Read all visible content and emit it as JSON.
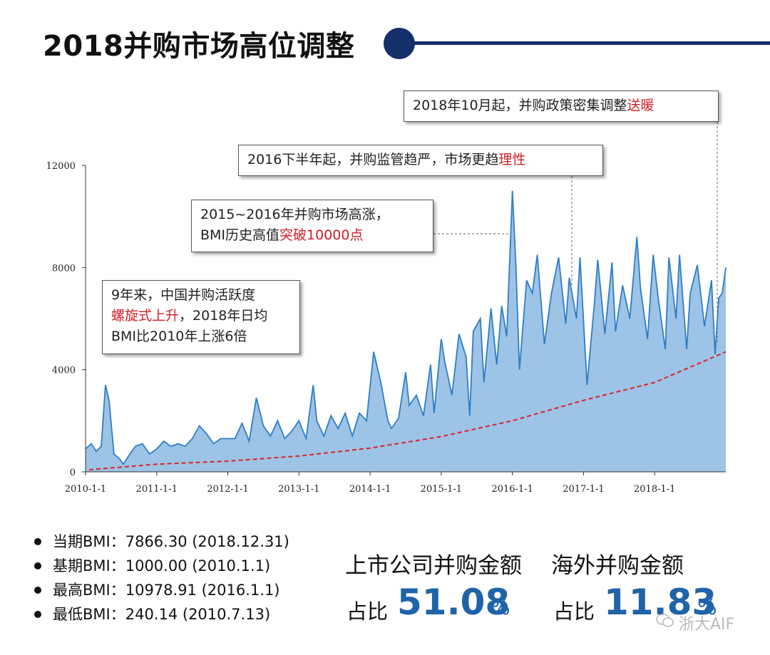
{
  "page": {
    "title": "2018并购市场高位调整",
    "watermark": "浙大AIF"
  },
  "callouts": {
    "policy_2018": {
      "text": "2018年10月起，并购政策密集调整",
      "highlight": "送暖"
    },
    "regulation_2016": {
      "text": "2016下半年起，并购监管趋严，市场更趋",
      "highlight": "理性"
    },
    "boom_2015": {
      "line1": "2015~2016年并购市场高涨，",
      "line2_pre": "BMI历史高值",
      "line2_highlight": "突破10000点"
    },
    "nine_years": {
      "line1": "9年来，中国并购活跃度",
      "line2_highlight": "螺旋式上升",
      "line2_post": "，2018年日均",
      "line3": "BMI比2010年上涨6倍"
    }
  },
  "stats": [
    {
      "label": "当期BMI：",
      "value": "7866.30 (2018.12.31)"
    },
    {
      "label": "基期BMI：",
      "value": "1000.00 (2010.1.1)"
    },
    {
      "label": "最高BMI：",
      "value": "10978.91 (2016.1.1)"
    },
    {
      "label": "最低BMI：",
      "value": "240.14 (2010.7.13)"
    }
  ],
  "shares": [
    {
      "label": "上市公司并购金额",
      "prefix": "占比",
      "value": "51.08",
      "unit": "%"
    },
    {
      "label": "海外并购金额",
      "prefix": "占比",
      "value": "11.83",
      "unit": "%"
    }
  ],
  "colors": {
    "title_accent": "#14306a",
    "area_fill": "#9dc3e6",
    "line": "#2f7ec4",
    "trend": "#d9242b",
    "highlight_text": "#d01f26",
    "share_value": "#1f63a8"
  },
  "chart_data": {
    "type": "area",
    "x_ticks": [
      "2010-1-1",
      "2011-1-1",
      "2012-1-1",
      "2013-1-1",
      "2014-1-1",
      "2015-1-1",
      "2016-1-1",
      "2017-1-1",
      "2018-1-1"
    ],
    "y_ticks": [
      "0",
      "4000",
      "8000",
      "12000"
    ],
    "ylim": [
      0,
      12000
    ],
    "xlim": [
      2010.0,
      2019.0
    ],
    "grid": false,
    "series": [
      {
        "kind": "area",
        "x": [
          2010.0,
          2010.08,
          2010.15,
          2010.22,
          2010.28,
          2010.33,
          2010.4,
          2010.48,
          2010.53,
          2010.6,
          2010.7,
          2010.8,
          2010.9,
          2011.0,
          2011.1,
          2011.2,
          2011.3,
          2011.4,
          2011.5,
          2011.6,
          2011.7,
          2011.8,
          2011.9,
          2012.0,
          2012.1,
          2012.2,
          2012.3,
          2012.4,
          2012.5,
          2012.6,
          2012.7,
          2012.8,
          2012.9,
          2013.0,
          2013.1,
          2013.2,
          2013.25,
          2013.35,
          2013.45,
          2013.55,
          2013.65,
          2013.75,
          2013.85,
          2013.95,
          2014.05,
          2014.15,
          2014.25,
          2014.3,
          2014.4,
          2014.5,
          2014.55,
          2014.65,
          2014.75,
          2014.85,
          2014.9,
          2015.0,
          2015.05,
          2015.15,
          2015.25,
          2015.35,
          2015.4,
          2015.45,
          2015.55,
          2015.6,
          2015.7,
          2015.78,
          2015.85,
          2015.92,
          2016.0,
          2016.05,
          2016.1,
          2016.2,
          2016.28,
          2016.35,
          2016.45,
          2016.55,
          2016.65,
          2016.75,
          2016.8,
          2016.9,
          2016.95,
          2017.05,
          2017.15,
          2017.2,
          2017.3,
          2017.4,
          2017.45,
          2017.55,
          2017.65,
          2017.75,
          2017.8,
          2017.9,
          2017.98,
          2018.05,
          2018.15,
          2018.2,
          2018.3,
          2018.35,
          2018.45,
          2018.5,
          2018.6,
          2018.7,
          2018.8,
          2018.85,
          2018.9,
          2018.95,
          2019.0
        ],
        "y": [
          900,
          1100,
          800,
          1000,
          3400,
          2800,
          700,
          500,
          300,
          600,
          1000,
          1100,
          700,
          900,
          1200,
          1000,
          1100,
          1000,
          1300,
          1800,
          1500,
          1100,
          1300,
          1300,
          1300,
          1900,
          1200,
          2900,
          1800,
          1400,
          2000,
          1300,
          1600,
          2000,
          1300,
          3400,
          2000,
          1400,
          2200,
          1700,
          2300,
          1400,
          2300,
          2000,
          4700,
          3500,
          2000,
          1700,
          2100,
          3900,
          2600,
          3000,
          2200,
          4200,
          2300,
          5200,
          4300,
          3000,
          5400,
          4500,
          2200,
          5500,
          6000,
          3500,
          6400,
          4200,
          6500,
          5300,
          11000,
          8000,
          4000,
          7500,
          7000,
          8500,
          5000,
          7000,
          8400,
          5800,
          7600,
          6000,
          8400,
          3400,
          6500,
          8300,
          5400,
          8200,
          5500,
          7300,
          6000,
          9200,
          7200,
          5200,
          8500,
          6800,
          4800,
          8400,
          6000,
          8500,
          4800,
          7000,
          8100,
          5700,
          7500,
          4600,
          6800,
          7000,
          8000
        ]
      },
      {
        "kind": "trend",
        "x": [
          2010.05,
          2011.0,
          2012.0,
          2013.0,
          2014.0,
          2015.0,
          2016.0,
          2017.0,
          2018.0,
          2019.0
        ],
        "y": [
          80,
          300,
          420,
          620,
          930,
          1380,
          2000,
          2800,
          3500,
          4700
        ]
      }
    ]
  }
}
